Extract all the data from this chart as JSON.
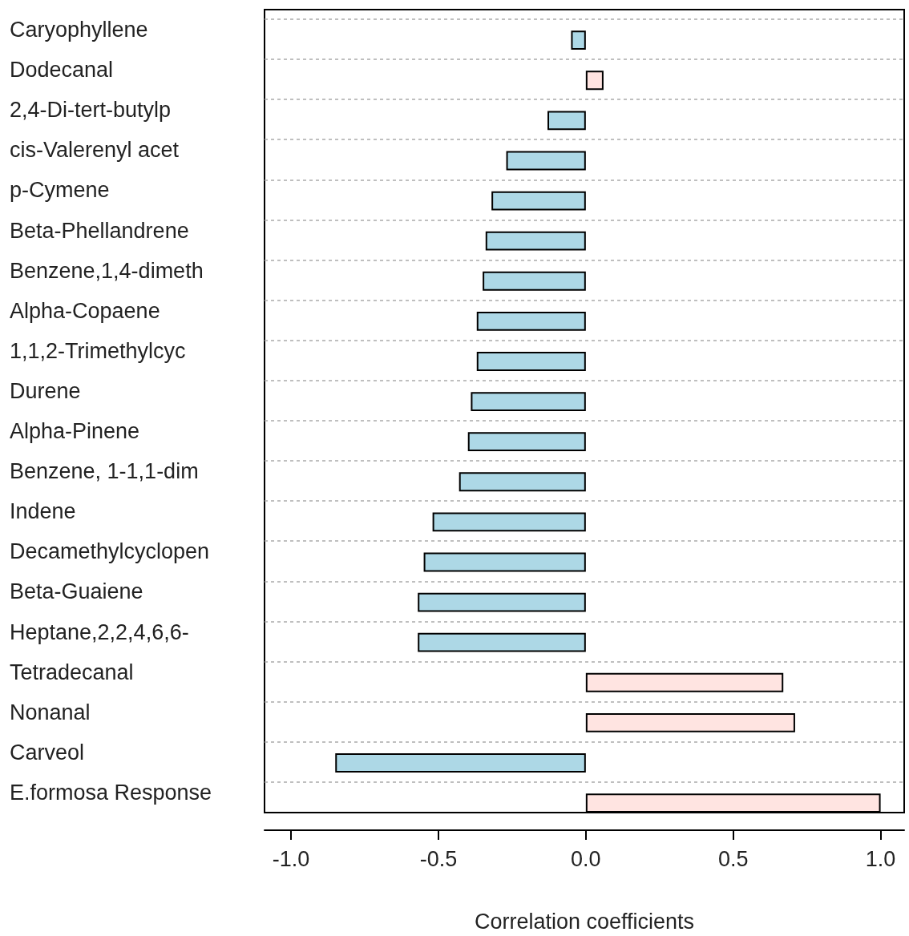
{
  "chart_data": {
    "type": "bar",
    "orientation": "horizontal",
    "xlabel": "Correlation coefficients",
    "categories": [
      "Caryophyllene",
      "Dodecanal",
      "2,4-Di-tert-butylp",
      "cis-Valerenyl acet",
      "p-Cymene",
      "Beta-Phellandrene",
      "Benzene,1,4-dimeth",
      "Alpha-Copaene",
      "1,1,2-Trimethylcyc",
      "Durene",
      "Alpha-Pinene",
      "Benzene, 1-1,1-dim",
      "Indene",
      "Decamethylcyclopen",
      "Beta-Guaiene",
      "Heptane,2,2,4,6,6-",
      "Tetradecanal",
      "Nonanal",
      "Carveol",
      "E.formosa Response"
    ],
    "values": [
      -0.05,
      0.06,
      -0.13,
      -0.27,
      -0.32,
      -0.34,
      -0.35,
      -0.37,
      -0.37,
      -0.39,
      -0.4,
      -0.43,
      -0.52,
      -0.55,
      -0.57,
      -0.57,
      0.67,
      0.71,
      -0.85,
      1.0
    ],
    "colors": [
      "#add8e6",
      "#ffe4e1",
      "#add8e6",
      "#add8e6",
      "#add8e6",
      "#add8e6",
      "#add8e6",
      "#add8e6",
      "#add8e6",
      "#add8e6",
      "#add8e6",
      "#add8e6",
      "#add8e6",
      "#add8e6",
      "#add8e6",
      "#add8e6",
      "#ffe4e1",
      "#ffe4e1",
      "#add8e6",
      "#ffe4e1"
    ],
    "xlim": [
      -1.09,
      1.08
    ],
    "xticks": [
      {
        "value": -1,
        "label": "-1.0"
      },
      {
        "value": -0.5,
        "label": "-0.5"
      },
      {
        "value": 0,
        "label": "0.0"
      },
      0.5,
      {
        "value": 1,
        "label": "1.0"
      }
    ],
    "grid": "y"
  }
}
